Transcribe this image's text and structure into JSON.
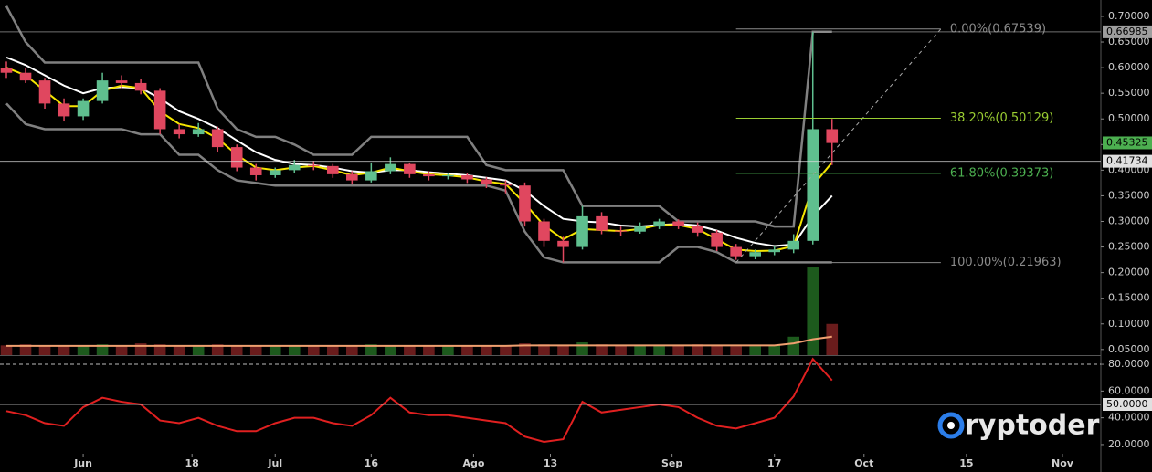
{
  "chart_data": [
    {
      "type": "candlestick",
      "x": [
        -12,
        -9,
        -6,
        -3,
        0,
        3,
        6,
        9,
        12,
        15,
        18,
        21,
        24,
        27,
        30,
        33,
        36,
        39,
        42,
        45,
        48,
        51,
        54,
        57,
        60,
        63,
        66,
        69,
        72,
        75,
        78,
        81,
        84,
        87,
        90,
        93,
        96,
        99,
        102,
        105,
        108,
        111,
        114,
        117
      ],
      "open": [
        0.6,
        0.59,
        0.575,
        0.53,
        0.505,
        0.535,
        0.575,
        0.57,
        0.555,
        0.48,
        0.47,
        0.48,
        0.445,
        0.405,
        0.39,
        0.4,
        0.41,
        0.408,
        0.392,
        0.38,
        0.398,
        0.412,
        0.392,
        0.388,
        0.39,
        0.382,
        0.372,
        0.37,
        0.3,
        0.262,
        0.25,
        0.31,
        0.282,
        0.28,
        0.29,
        0.3,
        0.292,
        0.278,
        0.25,
        0.232,
        0.24,
        0.245,
        0.262,
        0.48
      ],
      "high": [
        0.612,
        0.6,
        0.58,
        0.54,
        0.54,
        0.59,
        0.585,
        0.578,
        0.56,
        0.49,
        0.492,
        0.485,
        0.45,
        0.412,
        0.405,
        0.42,
        0.418,
        0.412,
        0.398,
        0.415,
        0.425,
        0.415,
        0.398,
        0.395,
        0.394,
        0.386,
        0.38,
        0.376,
        0.305,
        0.27,
        0.33,
        0.318,
        0.29,
        0.298,
        0.305,
        0.304,
        0.298,
        0.283,
        0.256,
        0.245,
        0.252,
        0.275,
        0.67,
        0.5
      ],
      "low": [
        0.58,
        0.57,
        0.52,
        0.495,
        0.498,
        0.53,
        0.56,
        0.548,
        0.47,
        0.462,
        0.465,
        0.435,
        0.398,
        0.38,
        0.385,
        0.395,
        0.4,
        0.385,
        0.372,
        0.376,
        0.392,
        0.385,
        0.38,
        0.382,
        0.375,
        0.365,
        0.355,
        0.29,
        0.25,
        0.22,
        0.245,
        0.275,
        0.272,
        0.276,
        0.285,
        0.285,
        0.27,
        0.242,
        0.225,
        0.226,
        0.234,
        0.238,
        0.255,
        0.41
      ],
      "close": [
        0.59,
        0.575,
        0.53,
        0.505,
        0.535,
        0.575,
        0.57,
        0.555,
        0.48,
        0.47,
        0.48,
        0.445,
        0.405,
        0.39,
        0.4,
        0.41,
        0.408,
        0.392,
        0.38,
        0.398,
        0.412,
        0.392,
        0.388,
        0.39,
        0.382,
        0.372,
        0.37,
        0.3,
        0.262,
        0.25,
        0.31,
        0.282,
        0.28,
        0.29,
        0.3,
        0.292,
        0.278,
        0.25,
        0.232,
        0.24,
        0.245,
        0.262,
        0.48,
        0.453
      ],
      "up_color": "#5fbf8f",
      "down_color": "#e0475f",
      "series": [
        {
          "color": "#808080",
          "values": [
            0.72,
            0.65,
            0.61,
            0.61,
            0.61,
            0.61,
            0.61,
            0.61,
            0.61,
            0.61,
            0.61,
            0.52,
            0.48,
            0.465,
            0.465,
            0.45,
            0.43,
            0.43,
            0.43,
            0.465,
            0.465,
            0.465,
            0.465,
            0.465,
            0.465,
            0.41,
            0.4,
            0.4,
            0.4,
            0.4,
            0.33,
            0.33,
            0.33,
            0.33,
            0.33,
            0.3,
            0.3,
            0.3,
            0.3,
            0.3,
            0.29,
            0.29,
            0.67,
            0.67
          ]
        },
        {
          "color": "#808080",
          "values": [
            0.53,
            0.49,
            0.48,
            0.48,
            0.48,
            0.48,
            0.48,
            0.47,
            0.47,
            0.43,
            0.43,
            0.4,
            0.38,
            0.375,
            0.37,
            0.37,
            0.37,
            0.37,
            0.37,
            0.37,
            0.37,
            0.37,
            0.37,
            0.37,
            0.37,
            0.37,
            0.36,
            0.28,
            0.23,
            0.22,
            0.22,
            0.22,
            0.22,
            0.22,
            0.22,
            0.25,
            0.25,
            0.24,
            0.22,
            0.22,
            0.22,
            0.22,
            0.22,
            0.22
          ]
        },
        {
          "color": "#ffffff",
          "values": [
            0.62,
            0.605,
            0.585,
            0.565,
            0.55,
            0.56,
            0.562,
            0.56,
            0.54,
            0.515,
            0.5,
            0.482,
            0.458,
            0.435,
            0.42,
            0.412,
            0.41,
            0.405,
            0.398,
            0.395,
            0.4,
            0.4,
            0.396,
            0.393,
            0.39,
            0.385,
            0.38,
            0.36,
            0.33,
            0.305,
            0.3,
            0.298,
            0.292,
            0.29,
            0.293,
            0.295,
            0.292,
            0.282,
            0.268,
            0.258,
            0.252,
            0.255,
            0.31,
            0.35
          ]
        },
        {
          "color": "#f5e600",
          "values": [
            0.6,
            0.585,
            0.555,
            0.525,
            0.525,
            0.555,
            0.565,
            0.56,
            0.515,
            0.49,
            0.482,
            0.462,
            0.43,
            0.405,
            0.4,
            0.405,
            0.408,
            0.4,
            0.39,
            0.395,
            0.405,
            0.398,
            0.392,
            0.39,
            0.386,
            0.378,
            0.373,
            0.335,
            0.292,
            0.265,
            0.285,
            0.283,
            0.281,
            0.285,
            0.293,
            0.293,
            0.285,
            0.265,
            0.245,
            0.242,
            0.243,
            0.252,
            0.37,
            0.415
          ]
        }
      ],
      "volume": {
        "up_color": "#1d5a1d",
        "down_color": "#6a1c1c",
        "values": [
          0.058,
          0.06,
          0.058,
          0.057,
          0.058,
          0.06,
          0.058,
          0.062,
          0.06,
          0.058,
          0.057,
          0.06,
          0.058,
          0.057,
          0.057,
          0.058,
          0.057,
          0.056,
          0.056,
          0.06,
          0.058,
          0.056,
          0.056,
          0.056,
          0.056,
          0.056,
          0.058,
          0.062,
          0.06,
          0.058,
          0.064,
          0.06,
          0.058,
          0.057,
          0.058,
          0.057,
          0.06,
          0.058,
          0.056,
          0.056,
          0.058,
          0.075,
          0.21,
          0.1
        ]
      },
      "volume_ma": {
        "color": "#f0a070",
        "values": [
          0.057,
          0.057,
          0.057,
          0.057,
          0.057,
          0.057,
          0.057,
          0.057,
          0.057,
          0.057,
          0.057,
          0.057,
          0.057,
          0.057,
          0.057,
          0.057,
          0.057,
          0.057,
          0.057,
          0.057,
          0.057,
          0.057,
          0.057,
          0.057,
          0.057,
          0.057,
          0.057,
          0.058,
          0.058,
          0.058,
          0.058,
          0.058,
          0.058,
          0.058,
          0.058,
          0.058,
          0.058,
          0.058,
          0.058,
          0.058,
          0.058,
          0.062,
          0.07,
          0.075
        ]
      },
      "fib": {
        "x": [
          102,
          134
        ],
        "levels": [
          {
            "value": 0.67539,
            "label": "0.00%(0.67539)",
            "color": "#8a8a8a"
          },
          {
            "value": 0.50129,
            "label": "38.20%(0.50129)",
            "color": "#9acd32"
          },
          {
            "value": 0.39373,
            "label": "61.80%(0.39373)",
            "color": "#4caf50"
          },
          {
            "value": 0.21963,
            "label": "100.00%(0.21963)",
            "color": "#8a8a8a"
          }
        ]
      },
      "markers": [
        {
          "value": 0.66985,
          "color": "#9e9e9e",
          "line": true
        },
        {
          "value": 0.45325,
          "color": "#4caf50",
          "line": false
        },
        {
          "value": 0.41734,
          "color": "#e0e0e0",
          "line": true
        }
      ],
      "xlim": [
        -13,
        159
      ],
      "ylim": [
        0.039,
        0.732
      ],
      "yticks": [
        {
          "value": 0.05,
          "label": "0.05000"
        },
        {
          "value": 0.1,
          "label": "0.10000"
        },
        {
          "value": 0.15,
          "label": "0.15000"
        },
        {
          "value": 0.2,
          "label": "0.20000"
        },
        {
          "value": 0.25,
          "label": "0.25000"
        },
        {
          "value": 0.3,
          "label": "0.30000"
        },
        {
          "value": 0.35,
          "label": "0.35000"
        },
        {
          "value": 0.4,
          "label": "0.40000"
        },
        {
          "value": 0.45,
          "label": "0.45000"
        },
        {
          "value": 0.5,
          "label": "0.50000"
        },
        {
          "value": 0.55,
          "label": "0.55000"
        },
        {
          "value": 0.6,
          "label": "0.60000"
        },
        {
          "value": 0.65,
          "label": "0.65000"
        },
        {
          "value": 0.7,
          "label": "0.70000"
        }
      ]
    },
    {
      "type": "line",
      "x": [
        -12,
        -9,
        -6,
        -3,
        0,
        3,
        6,
        9,
        12,
        15,
        18,
        21,
        24,
        27,
        30,
        33,
        36,
        39,
        42,
        45,
        48,
        51,
        54,
        57,
        60,
        63,
        66,
        69,
        72,
        75,
        78,
        81,
        84,
        87,
        90,
        93,
        96,
        99,
        102,
        105,
        108,
        111,
        114,
        117
      ],
      "series": [
        {
          "color": "#e02020",
          "values": [
            45,
            42,
            36,
            34,
            48,
            55,
            52,
            50,
            38,
            36,
            40,
            34,
            30,
            30,
            36,
            40,
            40,
            36,
            34,
            42,
            55,
            44,
            42,
            42,
            40,
            38,
            36,
            26,
            22,
            24,
            52,
            44,
            46,
            48,
            50,
            48,
            40,
            34,
            32,
            36,
            40,
            56,
            84,
            68
          ]
        }
      ],
      "levels": [
        {
          "value": 80,
          "dash": true
        }
      ],
      "markers": [
        {
          "value": 50,
          "label": "50.0000",
          "color": "#e0e0e0",
          "line": true
        }
      ],
      "xlim": [
        -13,
        159
      ],
      "ylim": [
        14.5,
        85.5
      ],
      "yticks": [
        {
          "value": 20,
          "label": "20.0000"
        },
        {
          "value": 40,
          "label": "40.0000"
        },
        {
          "value": 60,
          "label": "60.0000"
        },
        {
          "value": 80,
          "label": "80.0000"
        }
      ],
      "xticks": [
        {
          "value": 0,
          "label": "Jun"
        },
        {
          "value": 17,
          "label": "18"
        },
        {
          "value": 30,
          "label": "Jul"
        },
        {
          "value": 45,
          "label": "16"
        },
        {
          "value": 61,
          "label": "Ago"
        },
        {
          "value": 73,
          "label": "13"
        },
        {
          "value": 92,
          "label": "Sep"
        },
        {
          "value": 108,
          "label": "17"
        },
        {
          "value": 122,
          "label": "Oct"
        },
        {
          "value": 138,
          "label": "15"
        },
        {
          "value": 153,
          "label": "Nov"
        }
      ]
    }
  ],
  "watermark": "ryptoder"
}
